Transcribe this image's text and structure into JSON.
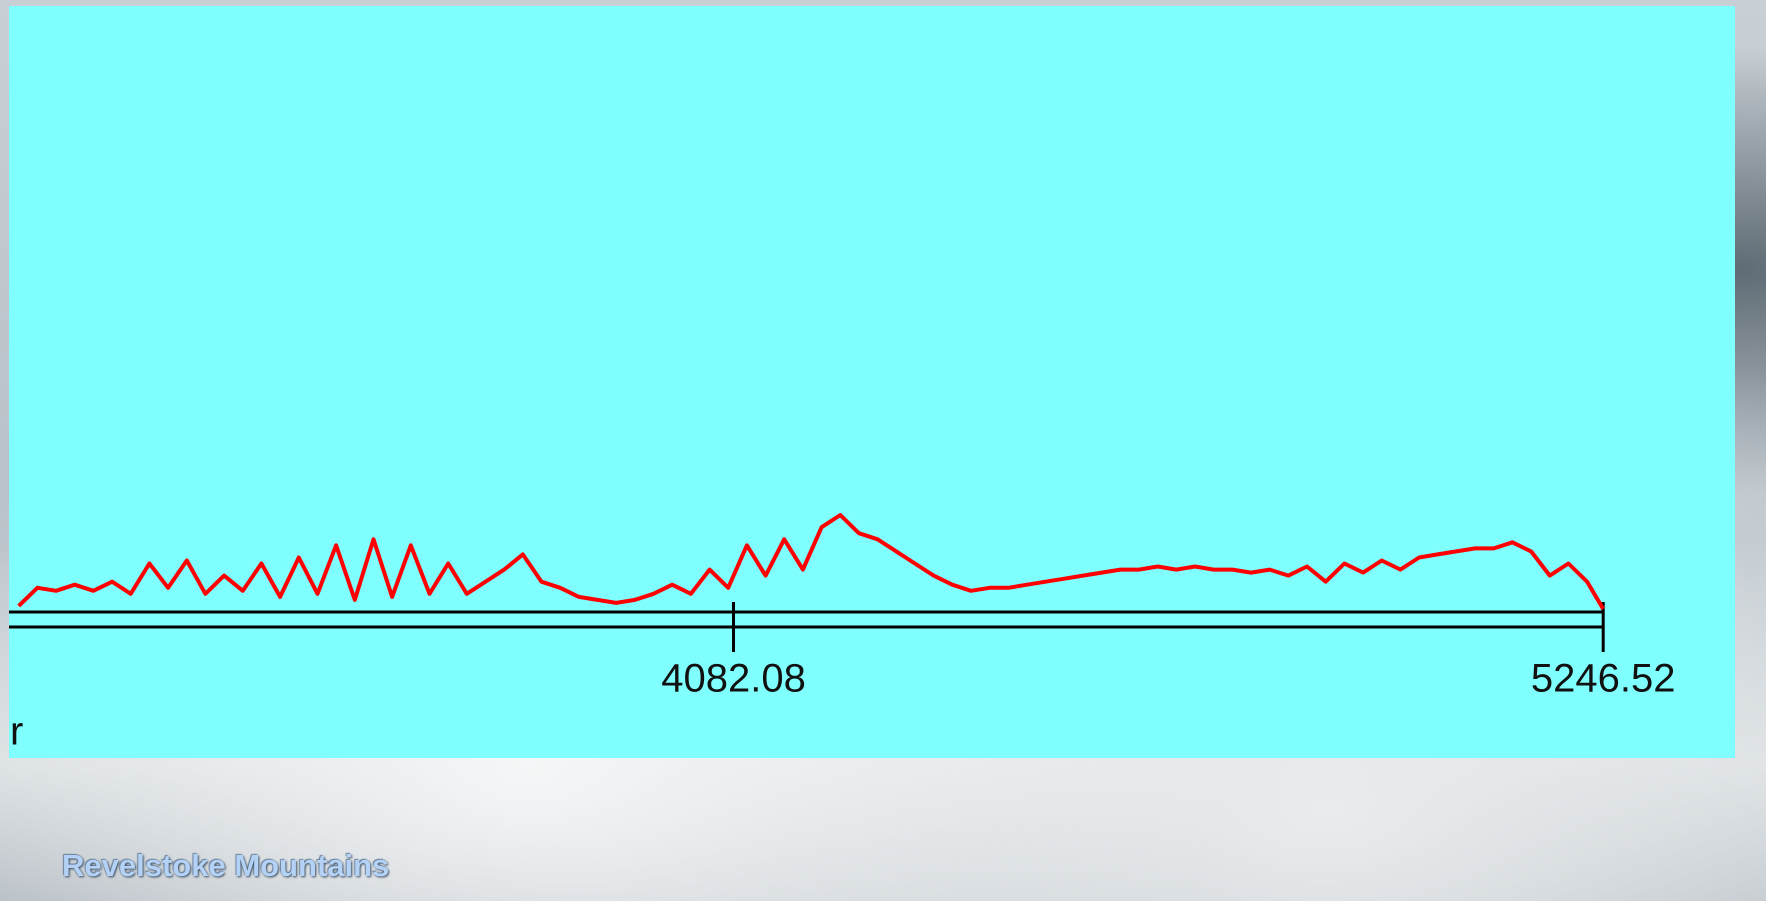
{
  "chart_data": {
    "type": "line",
    "xlabel": "r",
    "xlim": [
      3112,
      5423
    ],
    "xticks": [
      4082.08,
      5246.52
    ],
    "ylim": [
      0,
      100
    ],
    "series": [
      {
        "color": "#ff0000",
        "x": [
          3125,
          3150,
          3175,
          3200,
          3225,
          3250,
          3275,
          3300,
          3325,
          3350,
          3375,
          3400,
          3425,
          3450,
          3475,
          3500,
          3525,
          3550,
          3575,
          3600,
          3625,
          3650,
          3675,
          3700,
          3725,
          3750,
          3775,
          3800,
          3825,
          3850,
          3875,
          3900,
          3925,
          3950,
          3975,
          4000,
          4025,
          4050,
          4075,
          4100,
          4125,
          4150,
          4175,
          4200,
          4225,
          4250,
          4275,
          4300,
          4325,
          4350,
          4375,
          4400,
          4425,
          4450,
          4475,
          4500,
          4525,
          4550,
          4575,
          4600,
          4625,
          4650,
          4675,
          4700,
          4725,
          4750,
          4775,
          4800,
          4825,
          4850,
          4875,
          4900,
          4925,
          4950,
          4975,
          5000,
          5025,
          5050,
          5075,
          5100,
          5125,
          5150,
          5175,
          5200,
          5225,
          5246.52
        ],
        "values": [
          1,
          4,
          3.5,
          4.5,
          3.5,
          5,
          3,
          8,
          4,
          8.5,
          3,
          6,
          3.5,
          8,
          2.5,
          9,
          3,
          11,
          2,
          12,
          2.5,
          11,
          3,
          8,
          3,
          5,
          7,
          9.5,
          5,
          4,
          2.5,
          2,
          1.5,
          2,
          3,
          4.5,
          3,
          7,
          4,
          11,
          6,
          12,
          7,
          14,
          16,
          13,
          12,
          10,
          8,
          6,
          4.5,
          3.5,
          4,
          4,
          4.5,
          5,
          5.5,
          6,
          6.5,
          7,
          7,
          7.5,
          7,
          7.5,
          7,
          7,
          6.5,
          7,
          6,
          7.5,
          5,
          8,
          6.5,
          8.5,
          7,
          9,
          9.5,
          10,
          10.5,
          10.5,
          11.5,
          10,
          6,
          8,
          5,
          0.5
        ]
      }
    ]
  },
  "caption": "Revelstoke Mountains"
}
